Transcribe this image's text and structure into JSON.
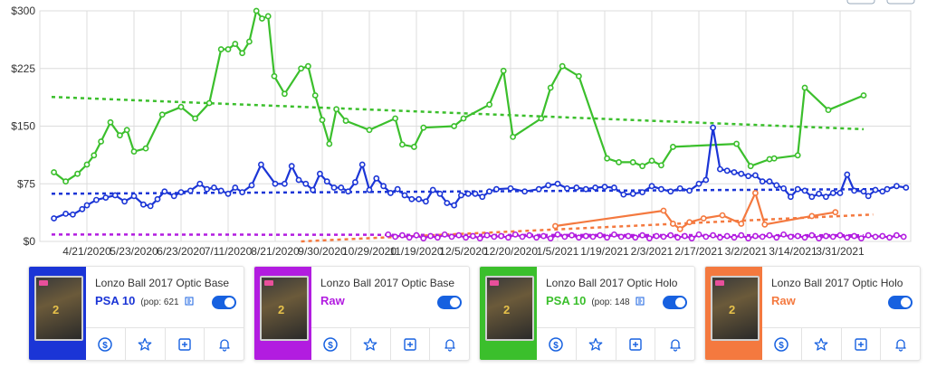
{
  "chart_data": {
    "type": "line",
    "ylim": [
      0,
      300
    ],
    "y_ticks": [
      "$0",
      "$75",
      "$150",
      "$225",
      "$300"
    ],
    "y_tick_values": [
      0,
      75,
      150,
      225,
      300
    ],
    "x_ticks": [
      "4/21/2020",
      "5/23/2020",
      "6/23/2020",
      "7/11/2020",
      "8/21/2020",
      "9/30/2020",
      "10/29/2020",
      "11/19/2020",
      "12/5/2020",
      "12/20/2020",
      "1/5/2021",
      "1/19/2021",
      "2/3/2021",
      "2/17/2021",
      "3/2/2021",
      "3/14/2021",
      "3/31/2021"
    ],
    "x_tick_index": [
      1,
      2,
      3,
      4,
      5,
      6,
      7,
      8,
      9,
      10,
      11,
      12,
      13,
      14,
      15,
      16,
      17
    ],
    "grid": true,
    "legend": "none",
    "series": [
      {
        "color": "#3bbf2c",
        "trend": [
          [
            0.25,
            188
          ],
          [
            17.5,
            146
          ]
        ],
        "points": [
          [
            0.3,
            90
          ],
          [
            0.55,
            78
          ],
          [
            0.8,
            88
          ],
          [
            1.0,
            100
          ],
          [
            1.15,
            112
          ],
          [
            1.3,
            130
          ],
          [
            1.5,
            155
          ],
          [
            1.7,
            138
          ],
          [
            1.85,
            145
          ],
          [
            2.0,
            117
          ],
          [
            2.25,
            121
          ],
          [
            2.6,
            165
          ],
          [
            3.0,
            175
          ],
          [
            3.3,
            160
          ],
          [
            3.6,
            180
          ],
          [
            3.85,
            250
          ],
          [
            4.0,
            250
          ],
          [
            4.15,
            257
          ],
          [
            4.3,
            245
          ],
          [
            4.45,
            260
          ],
          [
            4.6,
            300
          ],
          [
            4.72,
            290
          ],
          [
            4.85,
            293
          ],
          [
            4.98,
            215
          ],
          [
            5.2,
            192
          ],
          [
            5.55,
            225
          ],
          [
            5.7,
            228
          ],
          [
            5.85,
            190
          ],
          [
            6.0,
            158
          ],
          [
            6.15,
            127
          ],
          [
            6.3,
            172
          ],
          [
            6.5,
            157
          ],
          [
            7.0,
            145
          ],
          [
            7.55,
            160
          ],
          [
            7.7,
            126
          ],
          [
            7.95,
            123
          ],
          [
            8.15,
            148
          ],
          [
            8.8,
            150
          ],
          [
            9.0,
            160
          ],
          [
            9.55,
            178
          ],
          [
            9.85,
            222
          ],
          [
            10.05,
            136
          ],
          [
            10.65,
            160
          ],
          [
            10.85,
            200
          ],
          [
            11.1,
            228
          ],
          [
            11.45,
            215
          ],
          [
            12.05,
            108
          ],
          [
            12.3,
            103
          ],
          [
            12.6,
            103
          ],
          [
            12.8,
            98
          ],
          [
            13.0,
            105
          ],
          [
            13.2,
            99
          ],
          [
            13.45,
            123
          ],
          [
            14.8,
            127
          ],
          [
            15.1,
            98
          ],
          [
            15.5,
            107
          ],
          [
            15.6,
            108
          ],
          [
            16.1,
            112
          ],
          [
            16.25,
            200
          ],
          [
            16.75,
            171
          ],
          [
            17.5,
            190
          ]
        ]
      },
      {
        "color": "#1b35d6",
        "trend": [
          [
            0.25,
            62
          ],
          [
            17.7,
            68
          ]
        ],
        "points": [
          [
            0.3,
            30
          ],
          [
            0.55,
            36
          ],
          [
            0.7,
            35
          ],
          [
            0.9,
            42
          ],
          [
            1.0,
            47
          ],
          [
            1.2,
            54
          ],
          [
            1.4,
            57
          ],
          [
            1.6,
            60
          ],
          [
            1.8,
            52
          ],
          [
            2.0,
            59
          ],
          [
            2.2,
            48
          ],
          [
            2.35,
            46
          ],
          [
            2.5,
            55
          ],
          [
            2.65,
            65
          ],
          [
            2.85,
            59
          ],
          [
            3.0,
            64
          ],
          [
            3.2,
            66
          ],
          [
            3.4,
            75
          ],
          [
            3.55,
            68
          ],
          [
            3.7,
            70
          ],
          [
            3.85,
            66
          ],
          [
            4.0,
            62
          ],
          [
            4.15,
            70
          ],
          [
            4.3,
            64
          ],
          [
            4.5,
            73
          ],
          [
            4.7,
            100
          ],
          [
            5.0,
            75
          ],
          [
            5.2,
            75
          ],
          [
            5.35,
            98
          ],
          [
            5.5,
            80
          ],
          [
            5.65,
            75
          ],
          [
            5.8,
            67
          ],
          [
            5.95,
            88
          ],
          [
            6.1,
            78
          ],
          [
            6.25,
            70
          ],
          [
            6.4,
            70
          ],
          [
            6.55,
            65
          ],
          [
            6.7,
            77
          ],
          [
            6.85,
            100
          ],
          [
            7.0,
            67
          ],
          [
            7.15,
            82
          ],
          [
            7.3,
            72
          ],
          [
            7.45,
            63
          ],
          [
            7.6,
            68
          ],
          [
            7.75,
            60
          ],
          [
            7.9,
            55
          ],
          [
            8.05,
            55
          ],
          [
            8.2,
            52
          ],
          [
            8.35,
            67
          ],
          [
            8.5,
            62
          ],
          [
            8.65,
            50
          ],
          [
            8.8,
            47
          ],
          [
            8.95,
            60
          ],
          [
            9.1,
            62
          ],
          [
            9.25,
            62
          ],
          [
            9.4,
            58
          ],
          [
            9.55,
            65
          ],
          [
            9.7,
            68
          ],
          [
            10.0,
            69
          ],
          [
            10.3,
            65
          ],
          [
            10.6,
            68
          ],
          [
            10.8,
            73
          ],
          [
            11.0,
            75
          ],
          [
            11.2,
            69
          ],
          [
            11.4,
            70
          ],
          [
            11.6,
            68
          ],
          [
            11.8,
            70
          ],
          [
            12.0,
            71
          ],
          [
            12.2,
            70
          ],
          [
            12.4,
            61
          ],
          [
            12.6,
            62
          ],
          [
            12.8,
            64
          ],
          [
            13.0,
            72
          ],
          [
            13.2,
            68
          ],
          [
            13.4,
            65
          ],
          [
            13.6,
            69
          ],
          [
            13.8,
            66
          ],
          [
            14.0,
            75
          ],
          [
            14.15,
            80
          ],
          [
            14.3,
            148
          ],
          [
            14.45,
            94
          ],
          [
            14.6,
            92
          ],
          [
            14.75,
            90
          ],
          [
            14.9,
            88
          ],
          [
            15.05,
            85
          ],
          [
            15.2,
            86
          ],
          [
            15.35,
            78
          ],
          [
            15.5,
            78
          ],
          [
            15.65,
            73
          ],
          [
            15.8,
            69
          ],
          [
            15.95,
            58
          ],
          [
            16.1,
            68
          ],
          [
            16.25,
            66
          ],
          [
            16.4,
            58
          ],
          [
            16.55,
            62
          ],
          [
            16.7,
            58
          ],
          [
            16.85,
            63
          ],
          [
            17.0,
            63
          ],
          [
            17.15,
            87
          ],
          [
            17.3,
            66
          ],
          [
            17.5,
            65
          ],
          [
            17.6,
            59
          ],
          [
            17.75,
            67
          ],
          [
            17.9,
            65
          ],
          [
            18.0,
            68
          ],
          [
            18.2,
            72
          ],
          [
            18.4,
            70
          ]
        ]
      },
      {
        "color": "#b21ce0",
        "trend": [
          [
            0.25,
            9
          ],
          [
            17.5,
            8
          ]
        ],
        "points": [
          [
            7.4,
            9
          ],
          [
            7.55,
            6
          ],
          [
            7.7,
            8
          ],
          [
            7.85,
            5
          ],
          [
            8.0,
            8
          ],
          [
            8.15,
            4
          ],
          [
            8.3,
            7
          ],
          [
            8.45,
            5
          ],
          [
            8.6,
            9
          ],
          [
            8.75,
            6
          ],
          [
            8.9,
            8
          ],
          [
            9.05,
            5
          ],
          [
            9.2,
            7
          ],
          [
            9.35,
            4
          ],
          [
            9.5,
            8
          ],
          [
            9.65,
            6
          ],
          [
            9.8,
            7
          ],
          [
            9.95,
            5
          ],
          [
            10.1,
            9
          ],
          [
            10.25,
            6
          ],
          [
            10.4,
            8
          ],
          [
            10.55,
            5
          ],
          [
            10.7,
            7
          ],
          [
            10.85,
            4
          ],
          [
            11.0,
            9
          ],
          [
            11.15,
            6
          ],
          [
            11.3,
            8
          ],
          [
            11.45,
            5
          ],
          [
            11.6,
            7
          ],
          [
            11.75,
            6
          ],
          [
            11.9,
            8
          ],
          [
            12.05,
            5
          ],
          [
            12.2,
            9
          ],
          [
            12.35,
            6
          ],
          [
            12.5,
            7
          ],
          [
            12.65,
            5
          ],
          [
            12.8,
            8
          ],
          [
            12.95,
            4
          ],
          [
            13.1,
            7
          ],
          [
            13.25,
            6
          ],
          [
            13.4,
            8
          ],
          [
            13.55,
            5
          ],
          [
            13.7,
            7
          ],
          [
            13.85,
            4
          ],
          [
            14.0,
            9
          ],
          [
            14.15,
            6
          ],
          [
            14.3,
            8
          ],
          [
            14.45,
            5
          ],
          [
            14.6,
            7
          ],
          [
            14.75,
            5
          ],
          [
            14.9,
            8
          ],
          [
            15.05,
            4
          ],
          [
            15.2,
            7
          ],
          [
            15.35,
            6
          ],
          [
            15.5,
            8
          ],
          [
            15.65,
            5
          ],
          [
            15.8,
            9
          ],
          [
            15.95,
            6
          ],
          [
            16.1,
            7
          ],
          [
            16.25,
            5
          ],
          [
            16.4,
            8
          ],
          [
            16.55,
            4
          ],
          [
            16.7,
            7
          ],
          [
            16.85,
            6
          ],
          [
            17.0,
            8
          ],
          [
            17.15,
            5
          ],
          [
            17.3,
            7
          ],
          [
            17.45,
            4
          ],
          [
            17.6,
            8
          ],
          [
            17.75,
            6
          ],
          [
            17.9,
            7
          ],
          [
            18.05,
            5
          ],
          [
            18.2,
            8
          ],
          [
            18.35,
            6
          ]
        ]
      },
      {
        "color": "#f4793f",
        "trend": [
          [
            5.55,
            0
          ],
          [
            17.7,
            35
          ]
        ],
        "points": [
          [
            10.95,
            20
          ],
          [
            13.25,
            40
          ],
          [
            13.45,
            23
          ],
          [
            13.6,
            16
          ],
          [
            13.8,
            25
          ],
          [
            14.1,
            30
          ],
          [
            14.5,
            34
          ],
          [
            14.9,
            23
          ],
          [
            15.2,
            63
          ],
          [
            15.4,
            22
          ],
          [
            16.4,
            33
          ],
          [
            16.9,
            38
          ]
        ]
      }
    ]
  },
  "cards": [
    {
      "title": "Lonzo Ball 2017 Optic Base",
      "grade": "PSA 10",
      "pop": "(pop: 621",
      "accent": "#1b35d6",
      "grade_color": "#1b35d6",
      "jersey": "2"
    },
    {
      "title": "Lonzo Ball 2017 Optic Base",
      "grade": "Raw",
      "pop": "",
      "accent": "#b21ce0",
      "grade_color": "#b21ce0",
      "jersey": "2"
    },
    {
      "title": "Lonzo Ball 2017 Optic Holo",
      "grade": "PSA 10",
      "pop": "(pop: 148",
      "accent": "#3bbf2c",
      "grade_color": "#3bbf2c",
      "jersey": "2"
    },
    {
      "title": "Lonzo Ball 2017 Optic Holo",
      "grade": "Raw",
      "pop": "",
      "accent": "#f4793f",
      "grade_color": "#f4793f",
      "jersey": "2"
    }
  ],
  "actions": [
    {
      "name": "price-button",
      "icon": "dollar-circle-icon"
    },
    {
      "name": "favorite-button",
      "icon": "star-icon"
    },
    {
      "name": "add-button",
      "icon": "plus-square-icon"
    },
    {
      "name": "alert-button",
      "icon": "bell-icon"
    }
  ]
}
